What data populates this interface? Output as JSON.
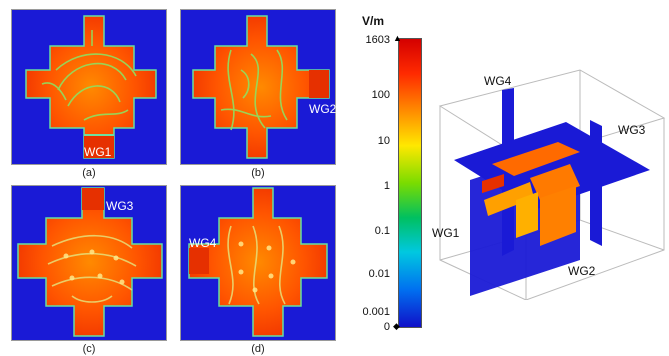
{
  "panels": [
    {
      "caption": "(a)",
      "port": "WG1"
    },
    {
      "caption": "(b)",
      "port": "WG2"
    },
    {
      "caption": "(c)",
      "port": "WG3"
    },
    {
      "caption": "(d)",
      "port": "WG4"
    }
  ],
  "colorbar": {
    "unit": "V/m",
    "ticks": [
      "1603",
      "100",
      "10",
      "1",
      "0.1",
      "0.01",
      "0.001",
      "0"
    ]
  },
  "model_3d": {
    "labels": {
      "wg1": "WG1",
      "wg2": "WG2",
      "wg3": "WG3",
      "wg4": "WG4"
    }
  },
  "colors": {
    "background_field": "#1a1ad6",
    "hot_field": "#ff5a00",
    "warm_field": "#ffaa00"
  }
}
